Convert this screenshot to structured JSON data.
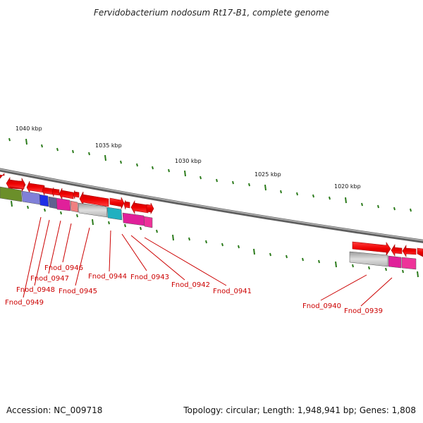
{
  "title": "Fervidobacterium nodosum Rt17-B1, complete genome",
  "footer": {
    "accession": "Accession: NC_009718",
    "topology": "Topology: circular; Length: 1,948,941 bp; Genes: 1,808"
  },
  "colors": {
    "backbone": "#7a7a7a",
    "gene_arrow": "#ee0000",
    "tick": "#2a7a1a",
    "label": "#cc0000"
  },
  "kbp_marks": [
    {
      "id": "1040",
      "label": "1040 kbp"
    },
    {
      "id": "1035",
      "label": "1035 kbp"
    },
    {
      "id": "1030",
      "label": "1030 kbp"
    },
    {
      "id": "1025",
      "label": "1025 kbp"
    },
    {
      "id": "1020",
      "label": "1020 kbp"
    }
  ],
  "genes": [
    {
      "id": "Fnod_0949",
      "label": "Fnod_0949"
    },
    {
      "id": "Fnod_0948",
      "label": "Fnod_0948"
    },
    {
      "id": "Fnod_0947",
      "label": "Fnod_0947"
    },
    {
      "id": "Fnod_0946",
      "label": "Fnod_0946"
    },
    {
      "id": "Fnod_0945",
      "label": "Fnod_0945"
    },
    {
      "id": "Fnod_0944",
      "label": "Fnod_0944"
    },
    {
      "id": "Fnod_0943",
      "label": "Fnod_0943"
    },
    {
      "id": "Fnod_0942",
      "label": "Fnod_0942"
    },
    {
      "id": "Fnod_0941",
      "label": "Fnod_0941"
    },
    {
      "id": "Fnod_0940",
      "label": "Fnod_0940"
    },
    {
      "id": "Fnod_0939",
      "label": "Fnod_0939"
    }
  ]
}
